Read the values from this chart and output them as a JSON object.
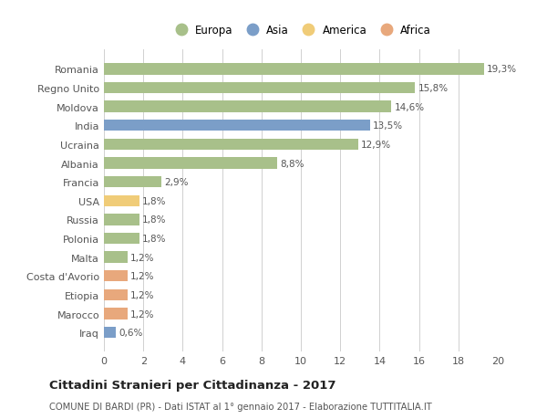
{
  "categories": [
    "Romania",
    "Regno Unito",
    "Moldova",
    "India",
    "Ucraina",
    "Albania",
    "Francia",
    "USA",
    "Russia",
    "Polonia",
    "Malta",
    "Costa d'Avorio",
    "Etiopia",
    "Marocco",
    "Iraq"
  ],
  "values": [
    19.3,
    15.8,
    14.6,
    13.5,
    12.9,
    8.8,
    2.9,
    1.8,
    1.8,
    1.8,
    1.2,
    1.2,
    1.2,
    1.2,
    0.6
  ],
  "labels": [
    "19,3%",
    "15,8%",
    "14,6%",
    "13,5%",
    "12,9%",
    "8,8%",
    "2,9%",
    "1,8%",
    "1,8%",
    "1,8%",
    "1,2%",
    "1,2%",
    "1,2%",
    "1,2%",
    "0,6%"
  ],
  "colors": [
    "#a8c08a",
    "#a8c08a",
    "#a8c08a",
    "#7b9ec8",
    "#a8c08a",
    "#a8c08a",
    "#a8c08a",
    "#f0cc78",
    "#a8c08a",
    "#a8c08a",
    "#a8c08a",
    "#e8a87c",
    "#e8a87c",
    "#e8a87c",
    "#7b9ec8"
  ],
  "legend_items": [
    {
      "label": "Europa",
      "color": "#a8c08a"
    },
    {
      "label": "Asia",
      "color": "#7b9ec8"
    },
    {
      "label": "America",
      "color": "#f0cc78"
    },
    {
      "label": "Africa",
      "color": "#e8a87c"
    }
  ],
  "title": "Cittadini Stranieri per Cittadinanza - 2017",
  "subtitle": "COMUNE DI BARDI (PR) - Dati ISTAT al 1° gennaio 2017 - Elaborazione TUTTITALIA.IT",
  "xlim": [
    0,
    20
  ],
  "xticks": [
    0,
    2,
    4,
    6,
    8,
    10,
    12,
    14,
    16,
    18,
    20
  ],
  "background_color": "#ffffff",
  "grid_color": "#d0d0d0"
}
